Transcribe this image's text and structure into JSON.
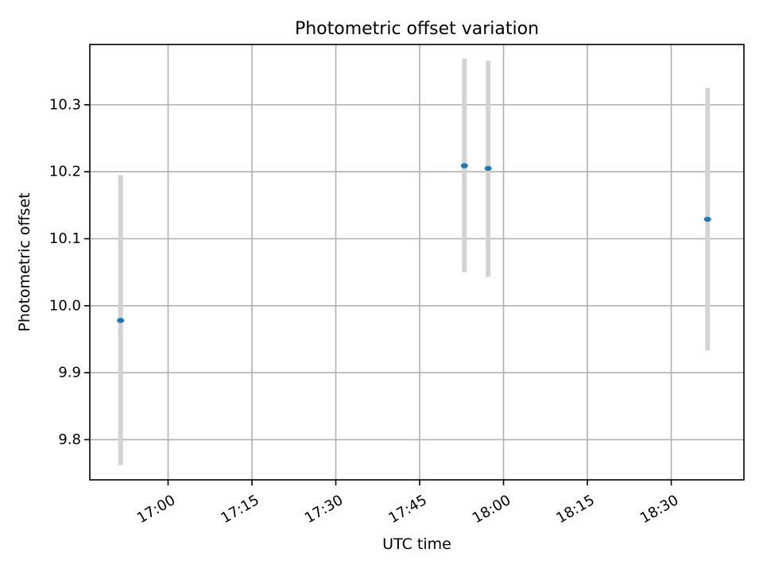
{
  "chart_data": {
    "type": "scatter",
    "title": "Photometric offset variation",
    "xlabel": "UTC time",
    "ylabel": "Photometric offset",
    "x_axis_kind": "time",
    "xlim": [
      "16:46",
      "18:43"
    ],
    "ylim": [
      9.74,
      10.39
    ],
    "x_ticks": [
      "17:00",
      "17:15",
      "17:30",
      "17:45",
      "18:00",
      "18:15",
      "18:30"
    ],
    "y_ticks": [
      "9.8",
      "9.9",
      "10.0",
      "10.1",
      "10.2",
      "10.3"
    ],
    "grid": true,
    "colors": {
      "point": "#1f77b4",
      "error_bar": "#d3d3d3"
    },
    "points": [
      {
        "x": "16:51:30",
        "y": 9.978,
        "ylow": 9.762,
        "yhigh": 10.195
      },
      {
        "x": "17:53:00",
        "y": 10.209,
        "ylow": 10.05,
        "yhigh": 10.369
      },
      {
        "x": "17:57:15",
        "y": 10.205,
        "ylow": 10.043,
        "yhigh": 10.366
      },
      {
        "x": "18:36:30",
        "y": 10.129,
        "ylow": 9.933,
        "yhigh": 10.325
      }
    ]
  }
}
